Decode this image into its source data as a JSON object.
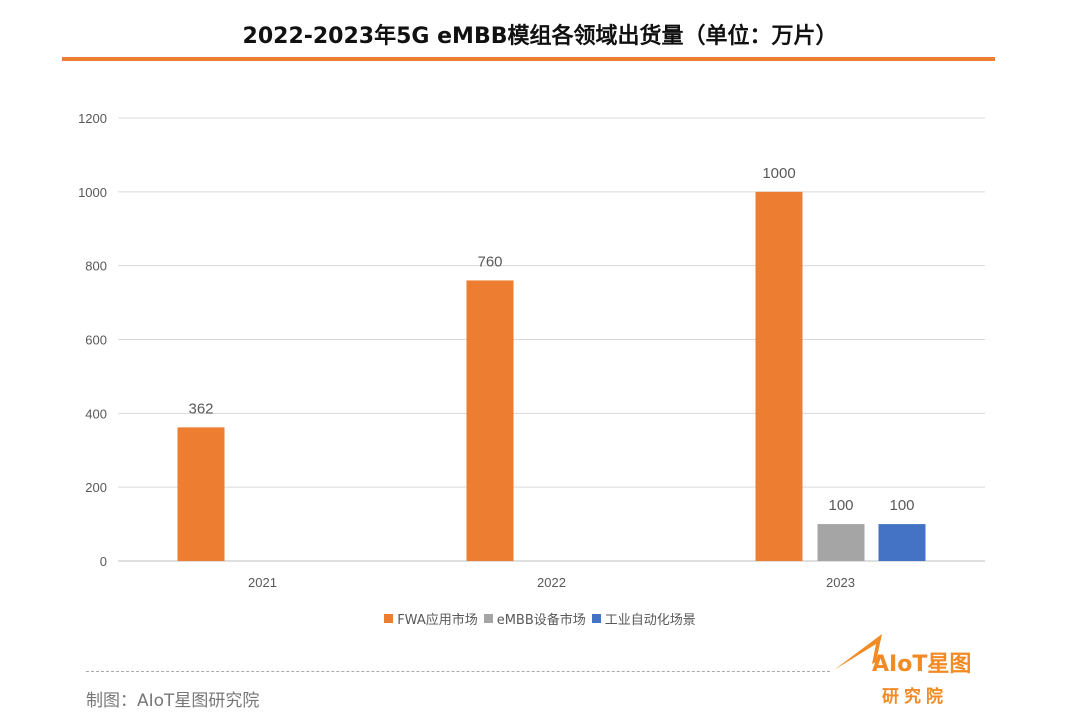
{
  "title": "2022-2023年5G eMBB模组各领域出货量（单位：万片）",
  "chart_data": {
    "type": "bar",
    "title": "2022-2023年5G eMBB模组各领域出货量（单位：万片）",
    "categories": [
      "2021",
      "2022",
      "2023"
    ],
    "series": [
      {
        "name": "FWA应用市场",
        "color": "#ed7d31",
        "values": [
          362,
          760,
          1000
        ]
      },
      {
        "name": "eMBB设备市场",
        "color": "#a5a5a5",
        "values": [
          null,
          null,
          100
        ]
      },
      {
        "name": "工业自动化场景",
        "color": "#4472c4",
        "values": [
          null,
          null,
          100
        ]
      }
    ],
    "ylim": [
      0,
      1200
    ],
    "yticks": [
      0,
      200,
      400,
      600,
      800,
      1000,
      1200
    ],
    "grid": true,
    "legend": "bottom"
  },
  "footer": {
    "credit": "制图：AIoT星图研究院",
    "logo_line1": "AIoT星图",
    "logo_line2": "研究院"
  }
}
